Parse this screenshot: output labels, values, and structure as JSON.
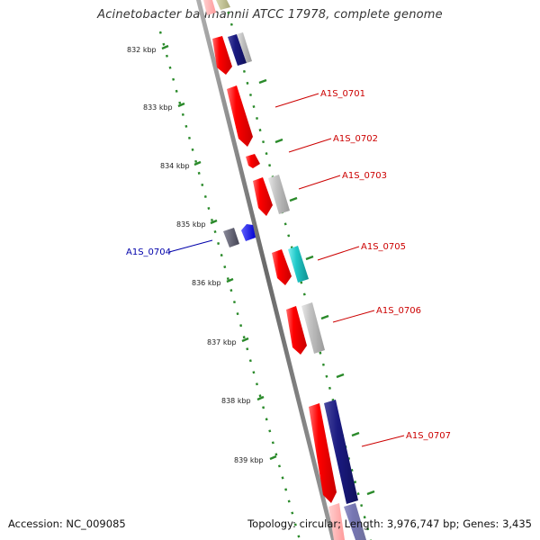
{
  "title": "Acinetobacter baumannii ATCC 17978, complete genome",
  "footer": {
    "accession": "Accession: NC_009085",
    "summary": "Topology: circular; Length: 3,976,747 bp; Genes: 3,435"
  },
  "colors": {
    "backbone": "#8a8a8a",
    "ticks": "#2a8a2a",
    "forward_label": "#cc0000",
    "reverse_label": "#0000aa",
    "gene_red": "#ff0000",
    "gene_gray": "#b8b8b8",
    "gene_navy": "#1a1a80",
    "gene_cyan": "#20c8c8",
    "gene_blue": "#0000ff",
    "gene_darkgray": "#555566"
  },
  "kbp_ticks": [
    "832 kbp",
    "833 kbp",
    "834 kbp",
    "835 kbp",
    "836 kbp",
    "837 kbp",
    "838 kbp",
    "839 kbp"
  ],
  "gene_labels": [
    {
      "id": "A1S_0701",
      "strand": "forward"
    },
    {
      "id": "A1S_0702",
      "strand": "forward"
    },
    {
      "id": "A1S_0703",
      "strand": "forward"
    },
    {
      "id": "A1S_0704",
      "strand": "reverse"
    },
    {
      "id": "A1S_0705",
      "strand": "forward"
    },
    {
      "id": "A1S_0706",
      "strand": "forward"
    },
    {
      "id": "A1S_0707",
      "strand": "forward"
    }
  ]
}
